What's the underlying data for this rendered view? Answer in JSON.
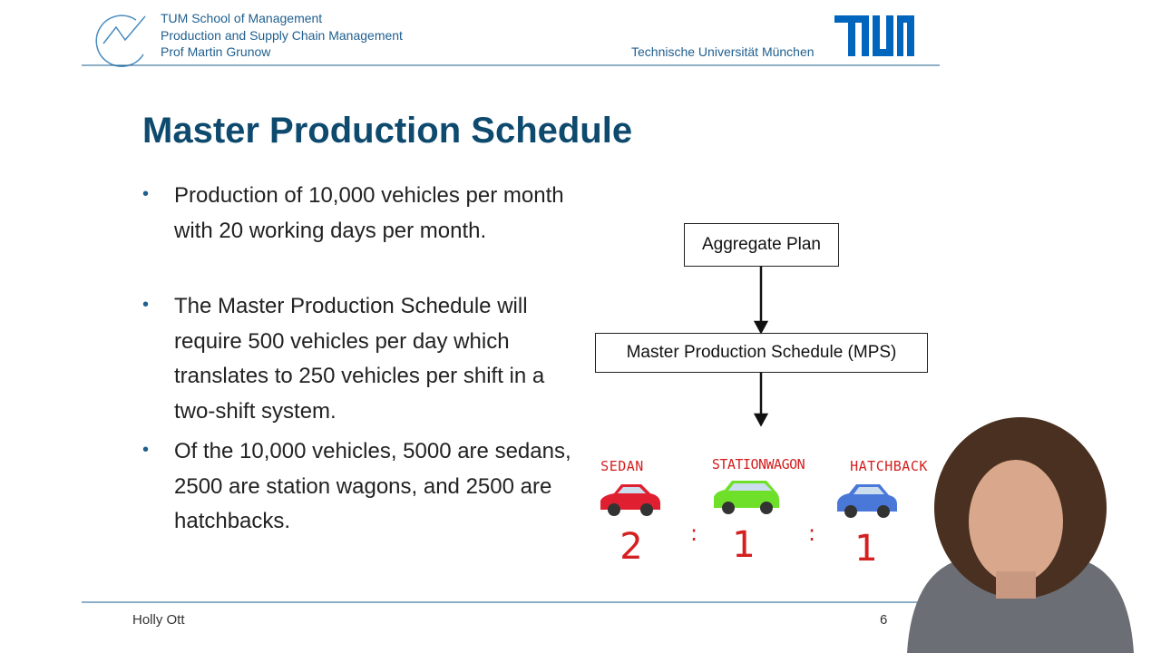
{
  "header": {
    "lines": [
      "TUM School of Management",
      "Production and Supply Chain Management",
      "Prof Martin Grunow"
    ],
    "university": "Technische Universität München"
  },
  "title": "Master Production Schedule",
  "bullets": [
    "Production of 10,000 vehicles per month with 20 working days per month.",
    "The Master Production Schedule will require 500 vehicles per day which translates to 250 vehicles per shift in a two-shift system.",
    "Of the 10,000 vehicles, 5000 are sedans, 2500 are station wagons, and 2500 are hatchbacks."
  ],
  "diagram": {
    "nodes": [
      {
        "label": "Aggregate Plan"
      },
      {
        "label": "Master Production Schedule (MPS)"
      }
    ],
    "car_labels": [
      "SEDAN",
      "STATIONWAGON",
      "HATCHBACK"
    ],
    "ratio": [
      "2",
      ":",
      "1",
      ":",
      "1"
    ]
  },
  "footer": {
    "presenter": "Holly Ott",
    "page": "6"
  }
}
